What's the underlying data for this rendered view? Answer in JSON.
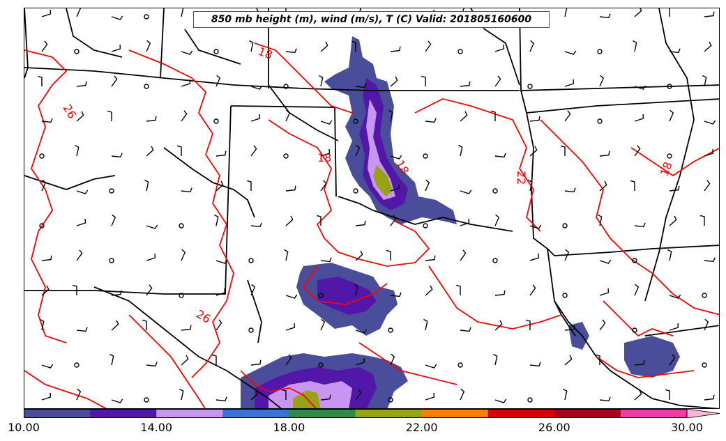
{
  "title": "850 mb height (m), wind (m/s), T (C) Valid: 201805160600",
  "contour_labels": [
    "18",
    "26",
    "18",
    "18",
    "22",
    "26",
    "18"
  ],
  "colorbar": {
    "tick_labels": [
      "10.00",
      "14.00",
      "18.00",
      "22.00",
      "26.00",
      "30.00"
    ],
    "min": 10,
    "max": 31,
    "extend": "max",
    "bins": [
      {
        "from": 10,
        "to": 12,
        "color": "#4a4e9a"
      },
      {
        "from": 12,
        "to": 14,
        "color": "#5217a8"
      },
      {
        "from": 14,
        "to": 16,
        "color": "#c896f2"
      },
      {
        "from": 16,
        "to": 18,
        "color": "#3a72d8"
      },
      {
        "from": 18,
        "to": 20,
        "color": "#2e8a45"
      },
      {
        "from": 20,
        "to": 22,
        "color": "#98a216"
      },
      {
        "from": 22,
        "to": 24,
        "color": "#ff7d00"
      },
      {
        "from": 24,
        "to": 26,
        "color": "#d80000"
      },
      {
        "from": 26,
        "to": 28,
        "color": "#a8001d"
      },
      {
        "from": 28,
        "to": 30,
        "color": "#f03ca4"
      },
      {
        "from": 30,
        "to": 31,
        "color": "#ffb4d8"
      }
    ]
  },
  "colors": {
    "temperature_contour": "#ff0000",
    "borders": "#000000"
  }
}
